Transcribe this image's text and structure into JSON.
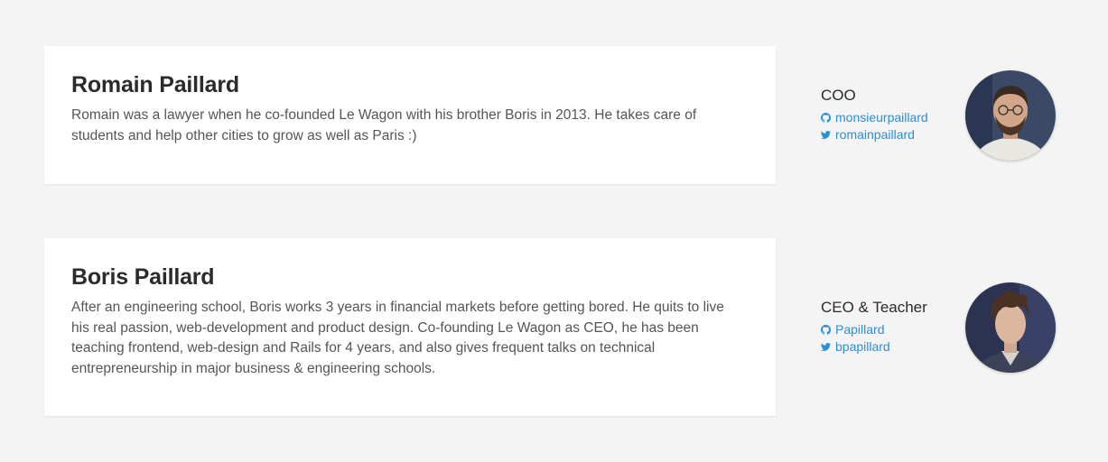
{
  "team": [
    {
      "name": "Romain Paillard",
      "bio": "Romain was a lawyer when he co-founded Le Wagon with his brother Boris in 2013. He takes care of students and help other cities to grow as well as Paris :)",
      "role": "COO",
      "github": "monsieurpaillard",
      "twitter": "romainpaillard",
      "avatar_icon": "avatar-photo"
    },
    {
      "name": "Boris Paillard",
      "bio": "After an engineering school, Boris works 3 years in financial markets before getting bored. He quits to live his real passion, web-development and product design. Co-founding Le Wagon as CEO, he has been teaching frontend, web-design and Rails for 4 years, and also gives frequent talks on technical entrepreneurship in major business & engineering schools.",
      "role": "CEO & Teacher",
      "github": "Papillard",
      "twitter": "bpapillard",
      "avatar_icon": "avatar-photo"
    }
  ],
  "colors": {
    "background": "#f4f4f4",
    "card": "#ffffff",
    "link": "#2c8fd6",
    "heading": "#2b2b2b",
    "text": "#555555"
  },
  "icons": {
    "github": "github-icon",
    "twitter": "twitter-icon"
  }
}
